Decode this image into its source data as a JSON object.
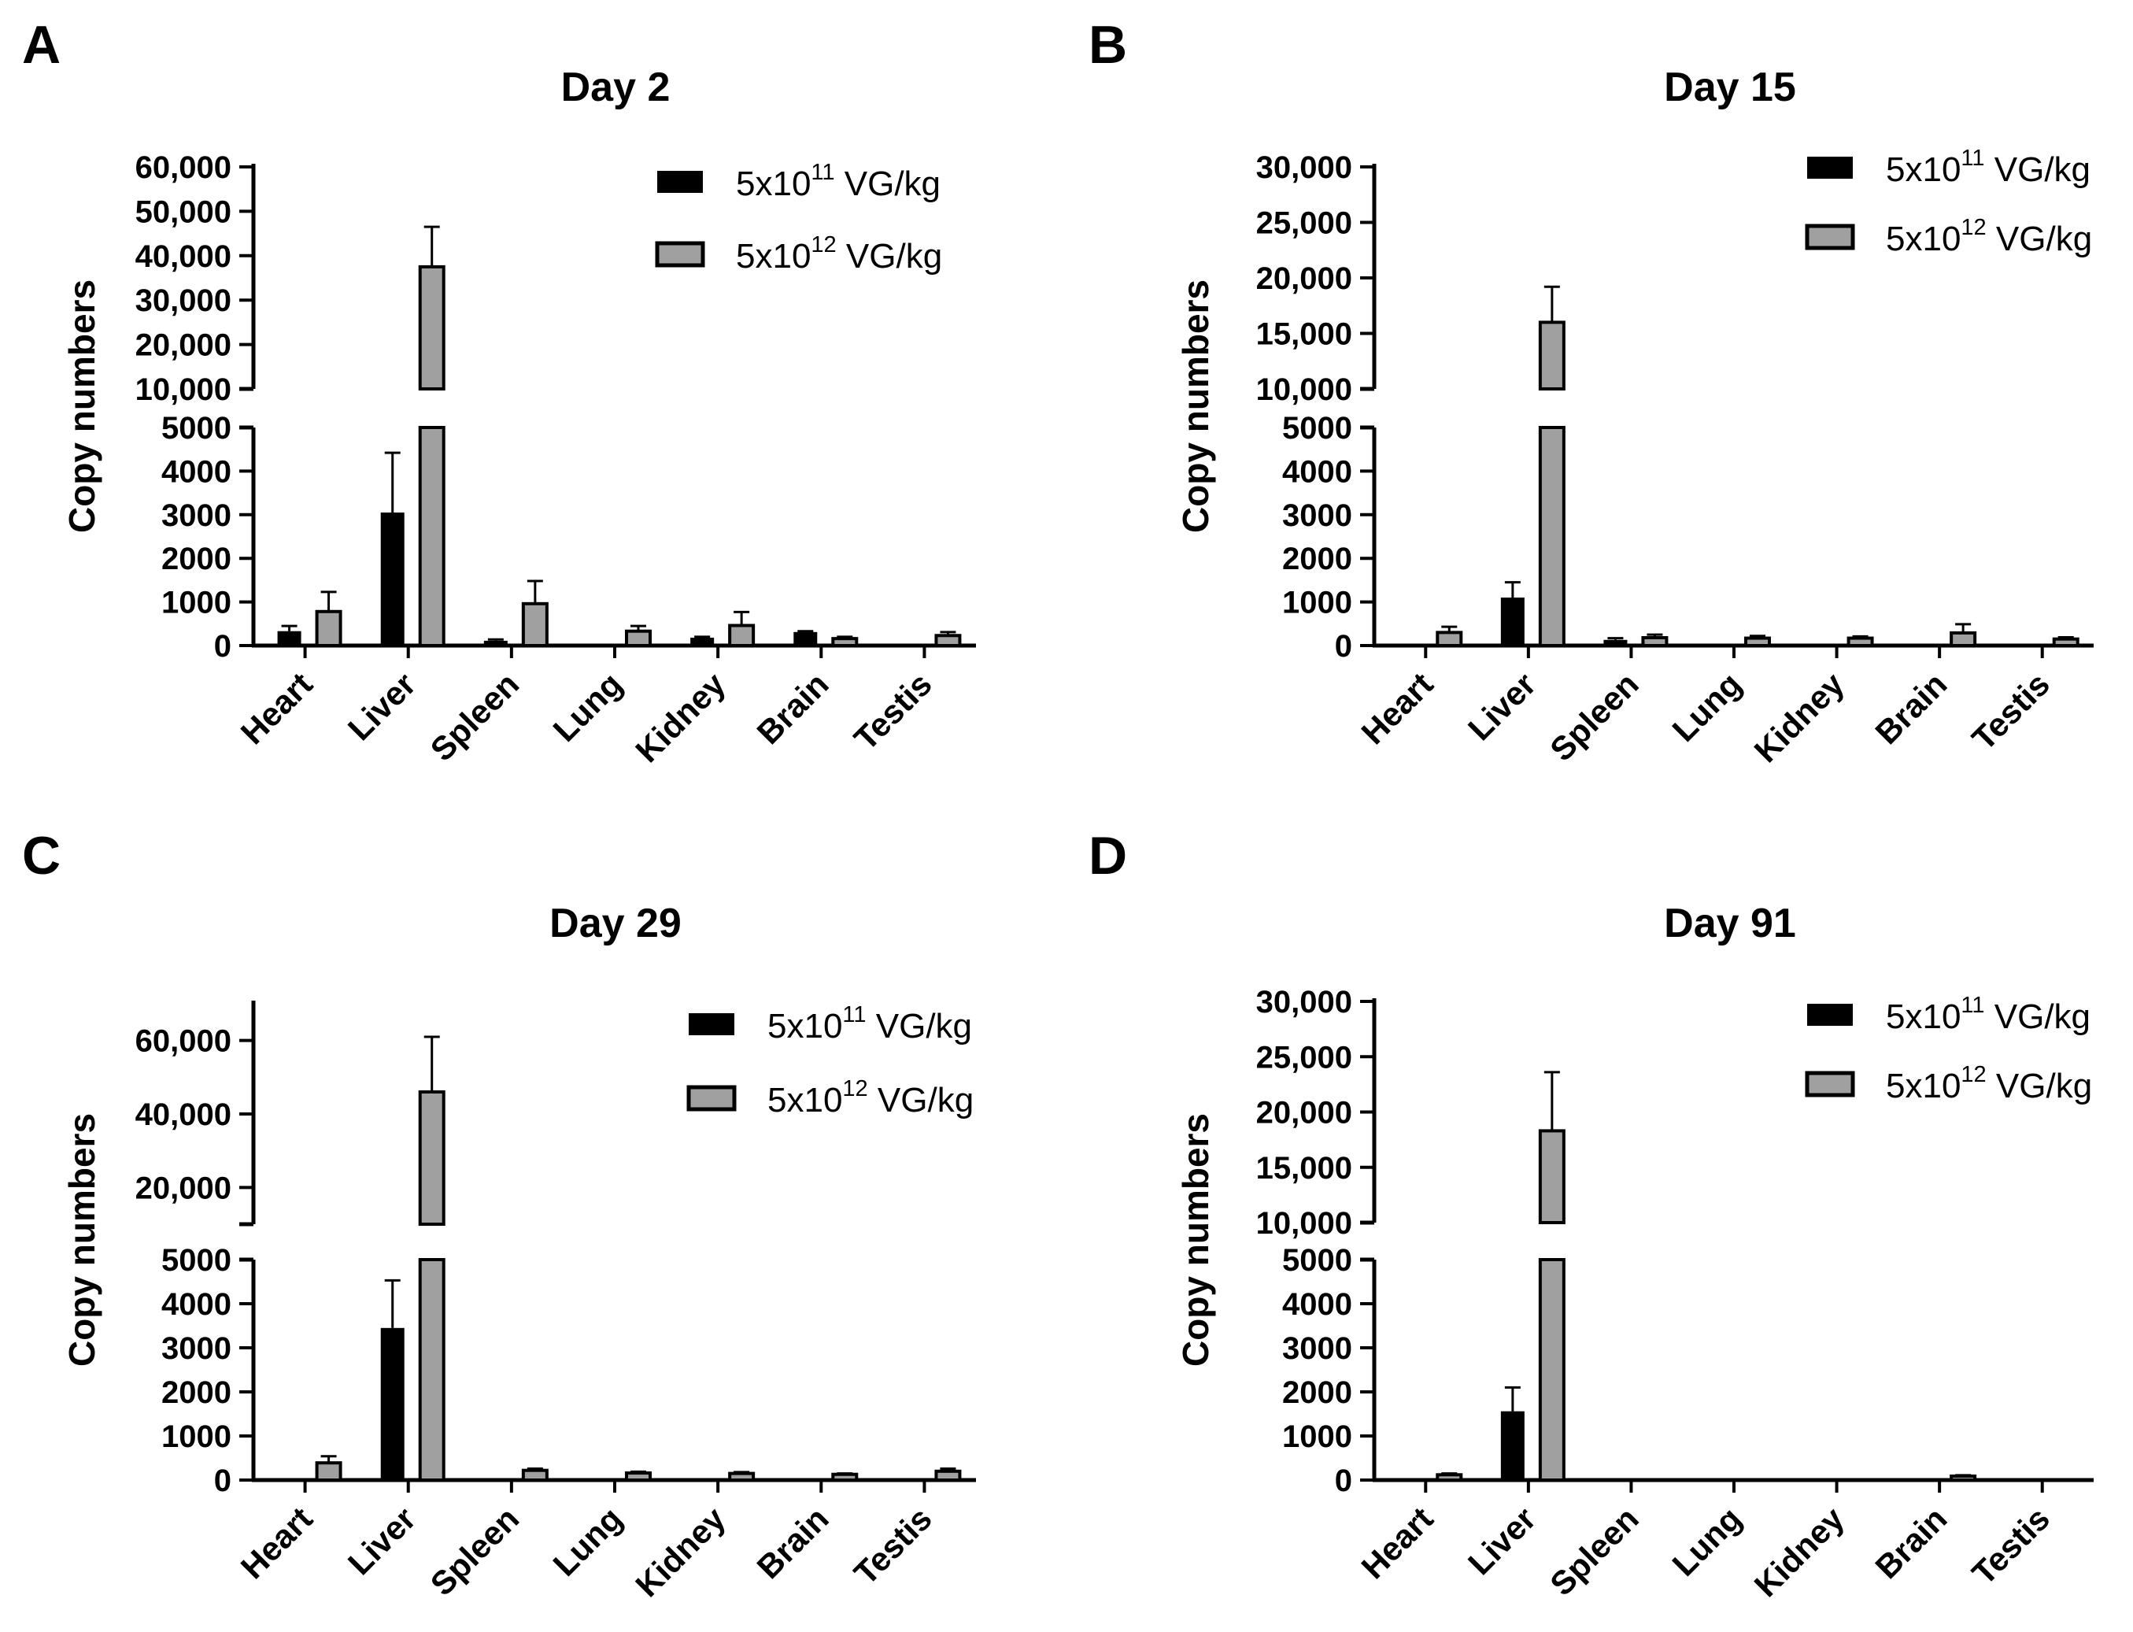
{
  "figure": {
    "colors": {
      "series1": "#000000",
      "series2": "#a0a0a0",
      "axis": "#000000"
    }
  },
  "chart_data": [
    {
      "panel": "A",
      "title": "Day 2",
      "type": "bar",
      "ylabel": "Copy numbers",
      "xlabel": "",
      "categories": [
        "Heart",
        "Liver",
        "Spleen",
        "Lung",
        "Kidney",
        "Brain",
        "Testis"
      ],
      "axis_break": true,
      "lower_range": [
        0,
        5000
      ],
      "upper_range": [
        10000,
        60000
      ],
      "lower_ticks": [
        0,
        1000,
        2000,
        3000,
        4000,
        5000
      ],
      "lower_tick_labels": [
        "0",
        "1000",
        "2000",
        "3000",
        "4000",
        "5000"
      ],
      "upper_ticks": [
        10000,
        20000,
        30000,
        40000,
        50000,
        60000
      ],
      "upper_tick_labels": [
        "10,000",
        "20,000",
        "30,000",
        "40,000",
        "50,000",
        "60,000"
      ],
      "legend": [
        {
          "base": "5x10",
          "exp": "11",
          "unit": " VG/kg"
        },
        {
          "base": "5x10",
          "exp": "12",
          "unit": " VG/kg"
        }
      ],
      "series": [
        {
          "name": "5x10^11 VG/kg",
          "values": [
            330,
            3050,
            110,
            0,
            180,
            310,
            0
          ],
          "errors": [
            120,
            1370,
            30,
            0,
            20,
            20,
            0
          ]
        },
        {
          "name": "5x10^12 VG/kg",
          "values": [
            780,
            37500,
            960,
            330,
            460,
            160,
            230
          ],
          "errors": [
            450,
            9000,
            520,
            120,
            310,
            40,
            80
          ]
        }
      ]
    },
    {
      "panel": "B",
      "title": "Day 15",
      "type": "bar",
      "ylabel": "Copy numbers",
      "xlabel": "",
      "categories": [
        "Heart",
        "Liver",
        "Spleen",
        "Lung",
        "Kidney",
        "Brain",
        "Testis"
      ],
      "axis_break": true,
      "lower_range": [
        0,
        5000
      ],
      "upper_range": [
        10000,
        30000
      ],
      "lower_ticks": [
        0,
        1000,
        2000,
        3000,
        4000,
        5000
      ],
      "lower_tick_labels": [
        "0",
        "1000",
        "2000",
        "3000",
        "4000",
        "5000"
      ],
      "upper_ticks": [
        10000,
        15000,
        20000,
        25000,
        30000
      ],
      "upper_tick_labels": [
        "10,000",
        "15,000",
        "20,000",
        "25,000",
        "30,000"
      ],
      "legend": [
        {
          "base": "5x10",
          "exp": "11",
          "unit": " VG/kg"
        },
        {
          "base": "5x10",
          "exp": "12",
          "unit": " VG/kg"
        }
      ],
      "series": [
        {
          "name": "5x10^11 VG/kg",
          "values": [
            0,
            1100,
            130,
            0,
            0,
            0,
            0
          ],
          "errors": [
            0,
            350,
            40,
            0,
            0,
            0,
            0
          ]
        },
        {
          "name": "5x10^12 VG/kg",
          "values": [
            300,
            16000,
            180,
            170,
            170,
            290,
            150
          ],
          "errors": [
            130,
            3200,
            70,
            50,
            40,
            200,
            40
          ]
        }
      ]
    },
    {
      "panel": "C",
      "title": "Day 29",
      "type": "bar",
      "ylabel": "Copy numbers",
      "xlabel": "",
      "categories": [
        "Heart",
        "Liver",
        "Spleen",
        "Lung",
        "Kidney",
        "Brain",
        "Testis"
      ],
      "axis_break": true,
      "lower_range": [
        0,
        5000
      ],
      "upper_range": [
        10000,
        70000
      ],
      "lower_ticks": [
        0,
        1000,
        2000,
        3000,
        4000,
        5000
      ],
      "lower_tick_labels": [
        "0",
        "1000",
        "2000",
        "3000",
        "4000",
        "5000"
      ],
      "upper_ticks": [
        20000,
        40000,
        60000
      ],
      "upper_tick_labels": [
        "20,000",
        "40,000",
        "60,000"
      ],
      "legend": [
        {
          "base": "5x10",
          "exp": "11",
          "unit": " VG/kg"
        },
        {
          "base": "5x10",
          "exp": "12",
          "unit": " VG/kg"
        }
      ],
      "series": [
        {
          "name": "5x10^11 VG/kg",
          "values": [
            0,
            3450,
            0,
            0,
            0,
            0,
            0
          ],
          "errors": [
            0,
            1080,
            0,
            0,
            0,
            0,
            0
          ]
        },
        {
          "name": "5x10^12 VG/kg",
          "values": [
            390,
            46000,
            220,
            160,
            150,
            130,
            200
          ],
          "errors": [
            150,
            15000,
            40,
            30,
            30,
            20,
            60
          ]
        }
      ]
    },
    {
      "panel": "D",
      "title": "Day 91",
      "type": "bar",
      "ylabel": "Copy numbers",
      "xlabel": "",
      "categories": [
        "Heart",
        "Liver",
        "Spleen",
        "Lung",
        "Kidney",
        "Brain",
        "Testis"
      ],
      "axis_break": true,
      "lower_range": [
        0,
        5000
      ],
      "upper_range": [
        10000,
        30000
      ],
      "lower_ticks": [
        0,
        1000,
        2000,
        3000,
        4000,
        5000
      ],
      "lower_tick_labels": [
        "0",
        "1000",
        "2000",
        "3000",
        "4000",
        "5000"
      ],
      "upper_ticks": [
        10000,
        15000,
        20000,
        25000,
        30000
      ],
      "upper_tick_labels": [
        "10,000",
        "15,000",
        "20,000",
        "25,000",
        "30,000"
      ],
      "legend": [
        {
          "base": "5x10",
          "exp": "11",
          "unit": " VG/kg"
        },
        {
          "base": "5x10",
          "exp": "12",
          "unit": " VG/kg"
        }
      ],
      "series": [
        {
          "name": "5x10^11 VG/kg",
          "values": [
            0,
            1560,
            0,
            0,
            0,
            0,
            0
          ],
          "errors": [
            0,
            540,
            0,
            0,
            0,
            0,
            0
          ]
        },
        {
          "name": "5x10^12 VG/kg",
          "values": [
            120,
            18300,
            0,
            0,
            0,
            90,
            0
          ],
          "errors": [
            30,
            5300,
            0,
            0,
            0,
            20,
            0
          ]
        }
      ]
    }
  ]
}
